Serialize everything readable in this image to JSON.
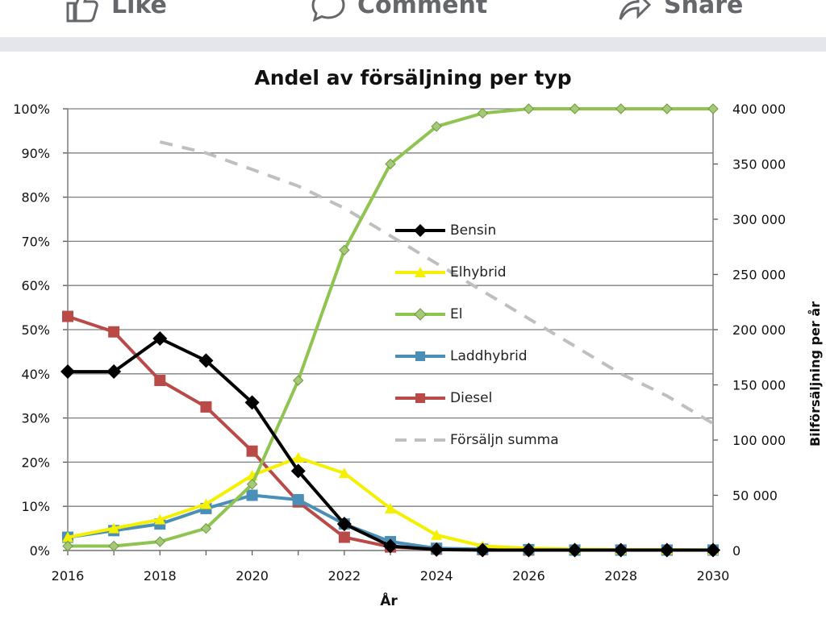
{
  "actions": {
    "like": "Like",
    "comment": "Comment",
    "share": "Share"
  },
  "chart_data": {
    "type": "line",
    "title": "Andel av försäljning per typ",
    "xlabel": "År",
    "ylabel": "",
    "y2label": "Bilförsäljning per år",
    "x": [
      2016,
      2017,
      2018,
      2019,
      2020,
      2021,
      2022,
      2023,
      2024,
      2025,
      2026,
      2027,
      2028,
      2029,
      2030
    ],
    "xticks": [
      "2016",
      "2018",
      "2020",
      "2022",
      "2024",
      "2026",
      "2028",
      "2030"
    ],
    "ylim": [
      0,
      100
    ],
    "yticks": [
      "0%",
      "10%",
      "20%",
      "30%",
      "40%",
      "50%",
      "60%",
      "70%",
      "80%",
      "90%",
      "100%"
    ],
    "y2lim": [
      0,
      400000
    ],
    "y2ticks": [
      "0",
      "50 000",
      "100 000",
      "150 000",
      "200 000",
      "250 000",
      "300 000",
      "350 000",
      "400 000"
    ],
    "grid": true,
    "legend_position": "center",
    "series": [
      {
        "name": "Bensin",
        "color": "#000000",
        "marker": "diamond",
        "axis": "left",
        "values": [
          40.5,
          40.5,
          48,
          43,
          33.5,
          18,
          6,
          1,
          0.2,
          0.1,
          0.1,
          0.1,
          0.1,
          0.1,
          0.1
        ]
      },
      {
        "name": "Elhybrid",
        "color": "#f5f000",
        "marker": "triangle",
        "axis": "left",
        "values": [
          3,
          5,
          7,
          10.5,
          17,
          21,
          17.5,
          9.5,
          3.5,
          1,
          0.5,
          0.3,
          0.2,
          0.2,
          0.1
        ]
      },
      {
        "name": "El",
        "color": "#8ec44f",
        "marker": "diamond",
        "axis": "left",
        "values": [
          1,
          1,
          2,
          5,
          15,
          38.5,
          68,
          87.5,
          96,
          99,
          100,
          100,
          100,
          100,
          100
        ]
      },
      {
        "name": "Laddhybrid",
        "color": "#4a8fb8",
        "marker": "square",
        "axis": "left",
        "values": [
          3,
          4.5,
          6,
          9.5,
          12.5,
          11.5,
          6,
          2,
          0.5,
          0.3,
          0.2,
          0.1,
          0.1,
          0.1,
          0.1
        ]
      },
      {
        "name": "Diesel",
        "color": "#b94a48",
        "marker": "square",
        "axis": "left",
        "values": [
          53,
          49.5,
          38.5,
          32.5,
          22.5,
          11,
          3,
          0.8,
          0.3,
          0.2,
          0.1,
          0.1,
          0.1,
          0.1,
          0.1
        ]
      },
      {
        "name": "Försäljn summa",
        "color": "#bfbfbf",
        "marker": "none",
        "dashed": true,
        "axis": "right",
        "x": [
          2018,
          2019,
          2020,
          2021,
          2022,
          2023,
          2024,
          2025,
          2026,
          2027,
          2028,
          2029,
          2030
        ],
        "values": [
          370000,
          360000,
          345000,
          330000,
          310000,
          285000,
          260000,
          235000,
          210000,
          185000,
          160000,
          140000,
          115000
        ]
      }
    ]
  }
}
